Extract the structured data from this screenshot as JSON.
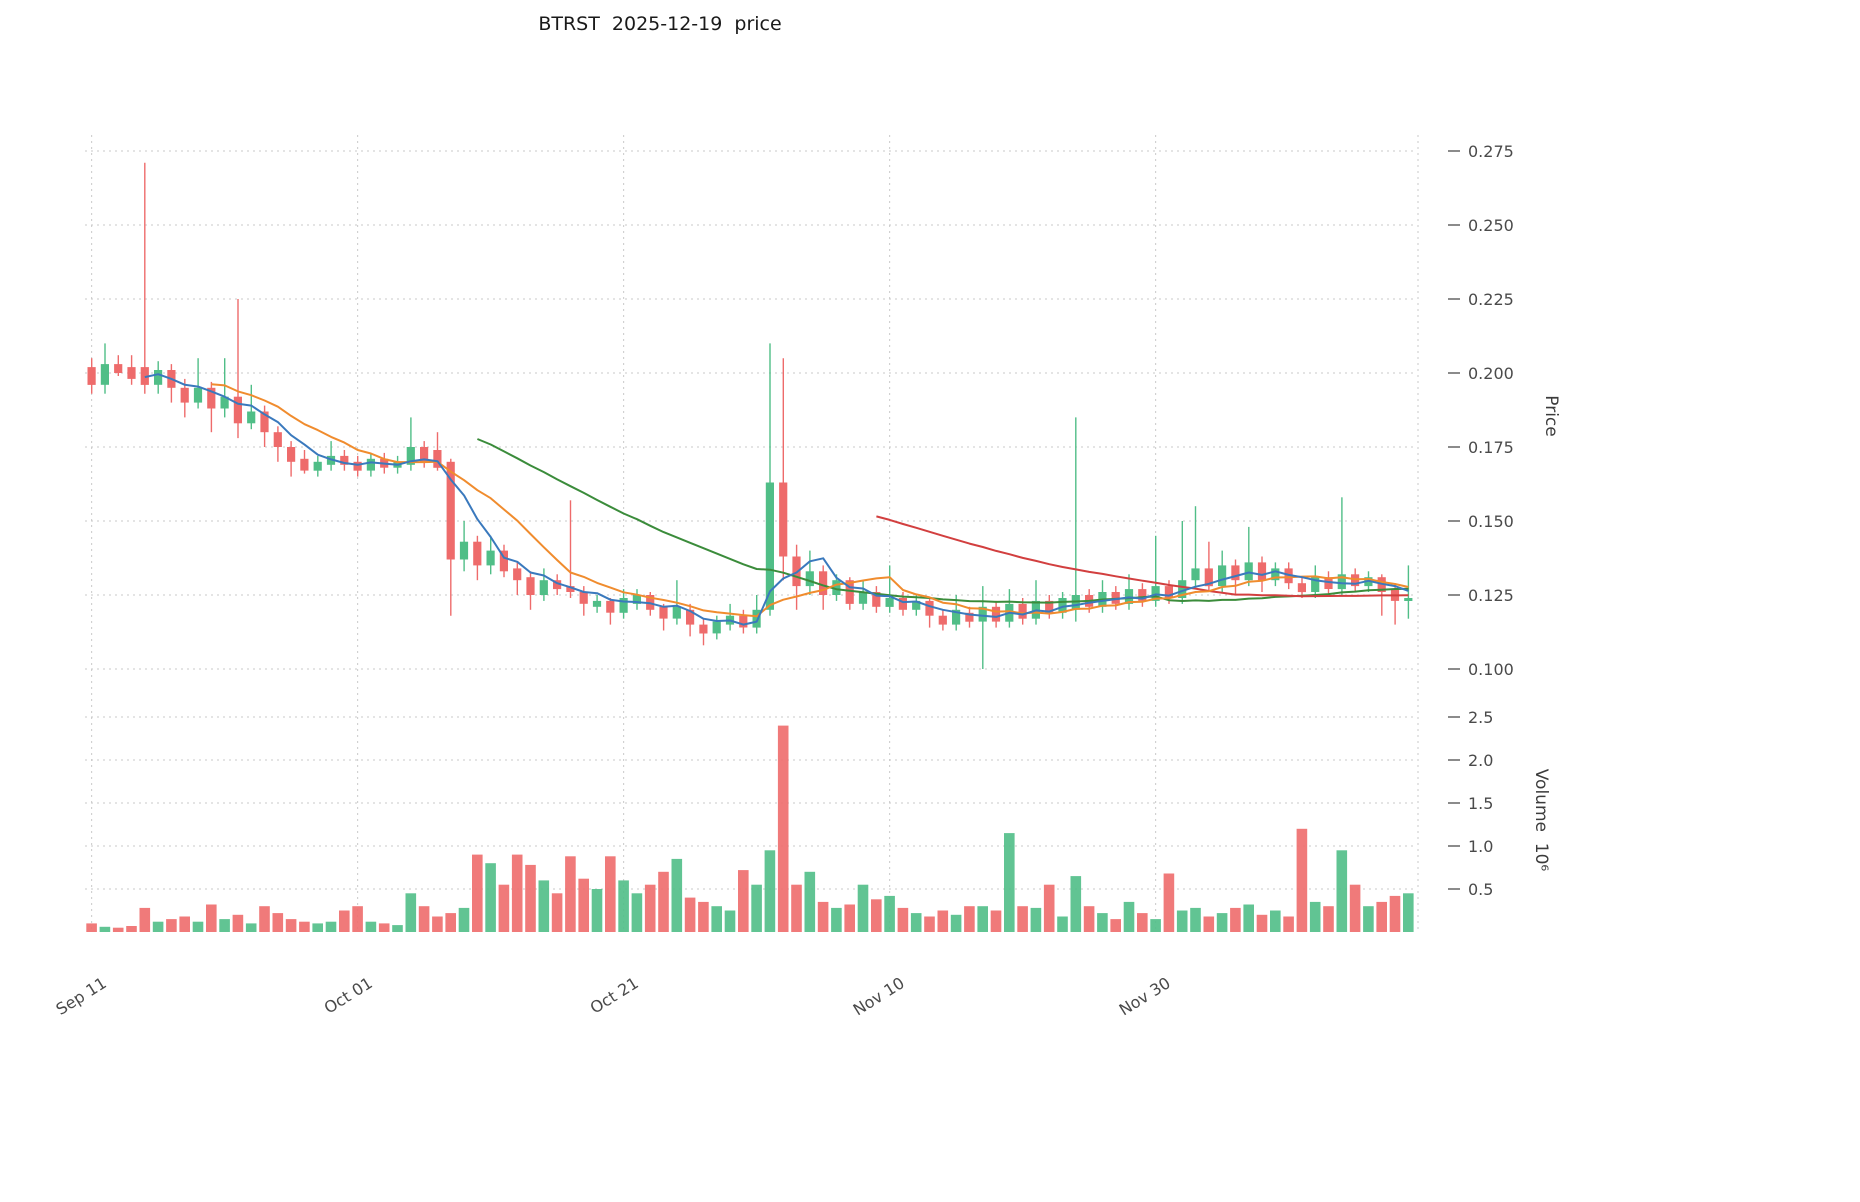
{
  "colors": {
    "up": "#50be87",
    "down": "#ee6b6b",
    "ma_short": "#3a79bd",
    "ma_mid": "#f08c2e",
    "ma_long": "#3b8c3b",
    "ma_xlong": "#d23f3f",
    "grid": "#c9c9c9",
    "axis_text": "#4a4a4a"
  },
  "chart_data": {
    "type": "candlestick+volume",
    "title": "BTRST  2025-12-19  price",
    "ylabel_price": "Price",
    "ylabel_volume": "Volume  10⁶",
    "legend_position": "none",
    "grid": "dashed",
    "price_axis_side": "right",
    "price_ticks": [
      "0.100",
      "0.125",
      "0.150",
      "0.175",
      "0.200",
      "0.225",
      "0.250",
      "0.275"
    ],
    "volume_ticks": [
      "0.5",
      "1.0",
      "1.5",
      "2.0",
      "2.5"
    ],
    "price_range": [
      0.095,
      0.285
    ],
    "volume_range": [
      0,
      2.6
    ],
    "x_tick_labels": [
      "Sep 11",
      "Oct 01",
      "Oct 21",
      "Nov 10",
      "Nov 30",
      ""
    ],
    "x_tick_indices": [
      0,
      20,
      40,
      60,
      80,
      100
    ],
    "ma_windows": {
      "short": 5,
      "mid": 10,
      "long": 30,
      "xlong": 60
    },
    "ohlc": [
      [
        0.202,
        0.205,
        0.193,
        0.196
      ],
      [
        0.196,
        0.21,
        0.193,
        0.203
      ],
      [
        0.203,
        0.206,
        0.199,
        0.2
      ],
      [
        0.202,
        0.206,
        0.196,
        0.198
      ],
      [
        0.202,
        0.271,
        0.193,
        0.196
      ],
      [
        0.196,
        0.204,
        0.193,
        0.201
      ],
      [
        0.201,
        0.203,
        0.19,
        0.195
      ],
      [
        0.195,
        0.198,
        0.185,
        0.19
      ],
      [
        0.19,
        0.205,
        0.188,
        0.195
      ],
      [
        0.195,
        0.197,
        0.18,
        0.188
      ],
      [
        0.188,
        0.205,
        0.185,
        0.192
      ],
      [
        0.192,
        0.225,
        0.178,
        0.183
      ],
      [
        0.183,
        0.196,
        0.181,
        0.187
      ],
      [
        0.187,
        0.189,
        0.175,
        0.18
      ],
      [
        0.18,
        0.182,
        0.17,
        0.175
      ],
      [
        0.175,
        0.177,
        0.165,
        0.17
      ],
      [
        0.171,
        0.174,
        0.166,
        0.167
      ],
      [
        0.167,
        0.172,
        0.165,
        0.17
      ],
      [
        0.169,
        0.177,
        0.167,
        0.172
      ],
      [
        0.172,
        0.174,
        0.167,
        0.169
      ],
      [
        0.17,
        0.172,
        0.165,
        0.167
      ],
      [
        0.167,
        0.173,
        0.165,
        0.171
      ],
      [
        0.171,
        0.173,
        0.166,
        0.168
      ],
      [
        0.168,
        0.172,
        0.166,
        0.17
      ],
      [
        0.169,
        0.185,
        0.167,
        0.175
      ],
      [
        0.175,
        0.177,
        0.168,
        0.17
      ],
      [
        0.174,
        0.18,
        0.167,
        0.168
      ],
      [
        0.17,
        0.171,
        0.118,
        0.137
      ],
      [
        0.137,
        0.15,
        0.133,
        0.143
      ],
      [
        0.143,
        0.145,
        0.13,
        0.135
      ],
      [
        0.135,
        0.145,
        0.132,
        0.14
      ],
      [
        0.14,
        0.142,
        0.131,
        0.133
      ],
      [
        0.134,
        0.136,
        0.125,
        0.13
      ],
      [
        0.131,
        0.133,
        0.12,
        0.125
      ],
      [
        0.125,
        0.134,
        0.123,
        0.13
      ],
      [
        0.13,
        0.132,
        0.125,
        0.127
      ],
      [
        0.128,
        0.157,
        0.124,
        0.126
      ],
      [
        0.126,
        0.128,
        0.118,
        0.122
      ],
      [
        0.121,
        0.125,
        0.119,
        0.123
      ],
      [
        0.123,
        0.124,
        0.115,
        0.119
      ],
      [
        0.119,
        0.127,
        0.117,
        0.124
      ],
      [
        0.122,
        0.127,
        0.12,
        0.125
      ],
      [
        0.125,
        0.126,
        0.118,
        0.12
      ],
      [
        0.121,
        0.122,
        0.113,
        0.117
      ],
      [
        0.117,
        0.13,
        0.115,
        0.121
      ],
      [
        0.12,
        0.122,
        0.111,
        0.115
      ],
      [
        0.115,
        0.117,
        0.108,
        0.112
      ],
      [
        0.112,
        0.118,
        0.11,
        0.116
      ],
      [
        0.115,
        0.122,
        0.113,
        0.118
      ],
      [
        0.118,
        0.12,
        0.112,
        0.114
      ],
      [
        0.114,
        0.125,
        0.112,
        0.12
      ],
      [
        0.12,
        0.21,
        0.118,
        0.163
      ],
      [
        0.163,
        0.205,
        0.13,
        0.138
      ],
      [
        0.138,
        0.142,
        0.12,
        0.128
      ],
      [
        0.128,
        0.14,
        0.125,
        0.133
      ],
      [
        0.133,
        0.135,
        0.12,
        0.125
      ],
      [
        0.125,
        0.132,
        0.123,
        0.13
      ],
      [
        0.13,
        0.131,
        0.12,
        0.122
      ],
      [
        0.122,
        0.13,
        0.12,
        0.126
      ],
      [
        0.126,
        0.128,
        0.119,
        0.121
      ],
      [
        0.121,
        0.135,
        0.119,
        0.124
      ],
      [
        0.124,
        0.126,
        0.118,
        0.12
      ],
      [
        0.12,
        0.125,
        0.118,
        0.123
      ],
      [
        0.123,
        0.124,
        0.114,
        0.118
      ],
      [
        0.118,
        0.12,
        0.113,
        0.115
      ],
      [
        0.115,
        0.125,
        0.113,
        0.12
      ],
      [
        0.119,
        0.121,
        0.114,
        0.116
      ],
      [
        0.116,
        0.128,
        0.1,
        0.121
      ],
      [
        0.121,
        0.123,
        0.114,
        0.116
      ],
      [
        0.116,
        0.127,
        0.114,
        0.122
      ],
      [
        0.122,
        0.124,
        0.115,
        0.117
      ],
      [
        0.117,
        0.13,
        0.115,
        0.123
      ],
      [
        0.123,
        0.125,
        0.117,
        0.119
      ],
      [
        0.119,
        0.126,
        0.117,
        0.124
      ],
      [
        0.12,
        0.185,
        0.116,
        0.125
      ],
      [
        0.125,
        0.127,
        0.119,
        0.121
      ],
      [
        0.121,
        0.13,
        0.119,
        0.126
      ],
      [
        0.126,
        0.128,
        0.12,
        0.122
      ],
      [
        0.122,
        0.132,
        0.12,
        0.127
      ],
      [
        0.127,
        0.129,
        0.121,
        0.123
      ],
      [
        0.123,
        0.145,
        0.121,
        0.128
      ],
      [
        0.128,
        0.13,
        0.122,
        0.124
      ],
      [
        0.124,
        0.15,
        0.122,
        0.13
      ],
      [
        0.13,
        0.155,
        0.128,
        0.134
      ],
      [
        0.134,
        0.143,
        0.126,
        0.128
      ],
      [
        0.128,
        0.14,
        0.126,
        0.135
      ],
      [
        0.135,
        0.137,
        0.125,
        0.13
      ],
      [
        0.13,
        0.148,
        0.128,
        0.136
      ],
      [
        0.136,
        0.138,
        0.126,
        0.13
      ],
      [
        0.13,
        0.136,
        0.128,
        0.134
      ],
      [
        0.134,
        0.136,
        0.127,
        0.129
      ],
      [
        0.129,
        0.131,
        0.124,
        0.126
      ],
      [
        0.126,
        0.135,
        0.124,
        0.131
      ],
      [
        0.131,
        0.133,
        0.125,
        0.127
      ],
      [
        0.127,
        0.158,
        0.125,
        0.132
      ],
      [
        0.132,
        0.134,
        0.126,
        0.128
      ],
      [
        0.128,
        0.133,
        0.126,
        0.131
      ],
      [
        0.131,
        0.132,
        0.118,
        0.126
      ],
      [
        0.127,
        0.129,
        0.115,
        0.123
      ],
      [
        0.123,
        0.135,
        0.117,
        0.124
      ]
    ],
    "volume": [
      0.1,
      0.06,
      0.05,
      0.07,
      0.28,
      0.12,
      0.15,
      0.18,
      0.12,
      0.32,
      0.15,
      0.2,
      0.1,
      0.3,
      0.22,
      0.15,
      0.12,
      0.1,
      0.12,
      0.25,
      0.3,
      0.12,
      0.1,
      0.08,
      0.45,
      0.3,
      0.18,
      0.22,
      0.28,
      0.9,
      0.8,
      0.55,
      0.9,
      0.78,
      0.6,
      0.45,
      0.88,
      0.62,
      0.5,
      0.88,
      0.6,
      0.45,
      0.55,
      0.7,
      0.85,
      0.4,
      0.35,
      0.3,
      0.25,
      0.72,
      0.55,
      0.95,
      2.4,
      0.55,
      0.7,
      0.35,
      0.28,
      0.32,
      0.55,
      0.38,
      0.42,
      0.28,
      0.22,
      0.18,
      0.25,
      0.2,
      0.3,
      0.3,
      0.25,
      1.15,
      0.3,
      0.28,
      0.55,
      0.18,
      0.65,
      0.3,
      0.22,
      0.15,
      0.35,
      0.22,
      0.15,
      0.68,
      0.25,
      0.28,
      0.18,
      0.22,
      0.28,
      0.32,
      0.2,
      0.25,
      0.18,
      1.2,
      0.35,
      0.3,
      0.95,
      0.55,
      0.3,
      0.35,
      0.42,
      0.45
    ]
  }
}
